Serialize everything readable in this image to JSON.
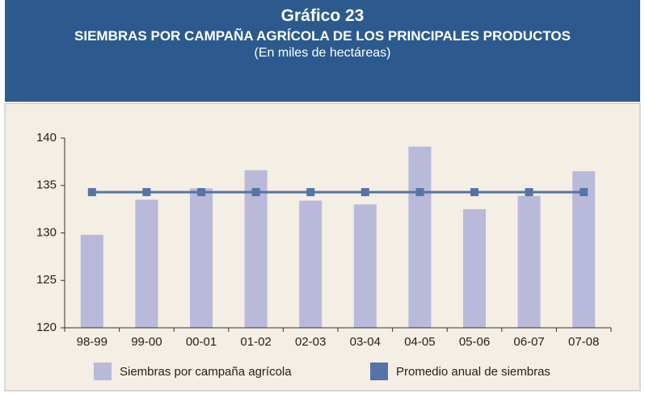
{
  "chart_data": {
    "type": "bar",
    "title": "Gráfico 23",
    "subtitle": "SIEMBRAS POR CAMPAÑA AGRÍCOLA DE LOS PRINCIPALES PRODUCTOS",
    "units": "(En miles de hectáreas)",
    "categories": [
      "98-99",
      "99-00",
      "00-01",
      "01-02",
      "02-03",
      "03-04",
      "04-05",
      "05-06",
      "06-07",
      "07-08"
    ],
    "series": [
      {
        "name": "Siembras por campaña agrícola",
        "type": "bar",
        "color": "#b9b9d9",
        "values": [
          129.8,
          133.5,
          134.7,
          136.6,
          133.4,
          133.0,
          139.1,
          132.5,
          133.9,
          136.5
        ]
      },
      {
        "name": "Promedio anual de siembras",
        "type": "line",
        "color": "#5474a6",
        "values": [
          134.3,
          134.3,
          134.3,
          134.3,
          134.3,
          134.3,
          134.3,
          134.3,
          134.3,
          134.3
        ]
      }
    ],
    "ylim": [
      120,
      140
    ],
    "yticks": [
      120,
      125,
      130,
      135,
      140
    ],
    "grid": false,
    "legend": "bottom"
  }
}
